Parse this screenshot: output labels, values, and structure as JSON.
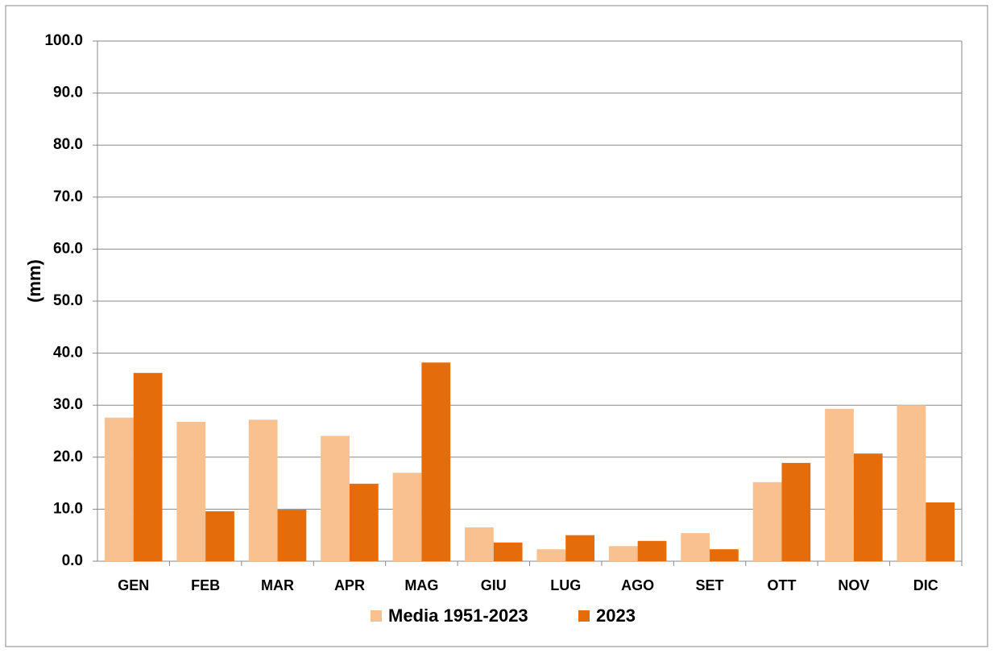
{
  "chart_data": {
    "type": "bar",
    "y_label": "(mm)",
    "categories": [
      "GEN",
      "FEB",
      "MAR",
      "APR",
      "MAG",
      "GIU",
      "LUG",
      "AGO",
      "SET",
      "OTT",
      "NOV",
      "DIC"
    ],
    "series": [
      {
        "name": "Media 1951-2023",
        "color": "#f9c190",
        "values": [
          27.6,
          26.8,
          27.2,
          24.1,
          17.0,
          6.5,
          2.3,
          2.9,
          5.4,
          15.2,
          29.3,
          30.0
        ]
      },
      {
        "name": "2023",
        "color": "#e46c0a",
        "values": [
          36.2,
          9.6,
          9.9,
          14.9,
          38.2,
          3.6,
          5.0,
          3.9,
          2.3,
          18.9,
          20.7,
          11.3
        ]
      }
    ],
    "ylim": [
      0,
      100
    ],
    "yticks": [
      {
        "value": 0,
        "label": "0.0"
      },
      {
        "value": 10,
        "label": "10.0"
      },
      {
        "value": 20,
        "label": "20.0"
      },
      {
        "value": 30,
        "label": "30.0"
      },
      {
        "value": 40,
        "label": "40.0"
      },
      {
        "value": 50,
        "label": "50.0"
      },
      {
        "value": 60,
        "label": "60.0"
      },
      {
        "value": 70,
        "label": "70.0"
      },
      {
        "value": 80,
        "label": "80.0"
      },
      {
        "value": 90,
        "label": "90.0"
      },
      {
        "value": 100,
        "label": "100.0"
      }
    ],
    "grid": true
  }
}
